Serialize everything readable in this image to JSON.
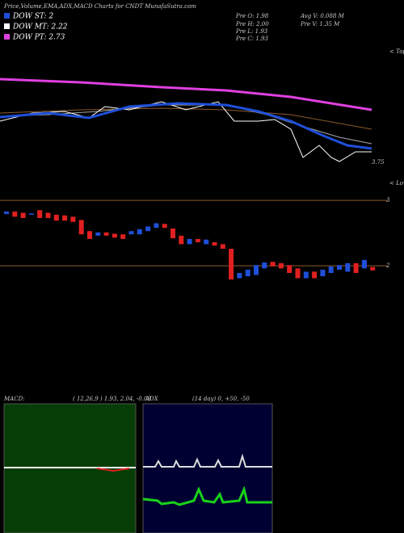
{
  "header": {
    "title": "Price,Volume,EMA,ADX,MACD Charts for CNDT MunafaSutra.com"
  },
  "legend": [
    "DOW ST: 2",
    "DOW MT: 2.22",
    "DOW PT: 2.73"
  ],
  "info": [
    "Pre  O: 1.98",
    "Pre  H: 2.00",
    "Pre  L: 1.93",
    "Pre  C: 1.93",
    "Avg V: 0.088  M",
    "Pre  V: 1.35 M"
  ],
  "labels": {
    "tops": "< Tops",
    "lows": "< Lows",
    "last": "3.75"
  },
  "chart_data": {
    "type": "candlestick",
    "open": [
      2.79,
      2.83,
      2.81,
      2.78,
      2.85,
      2.81,
      2.78,
      2.77,
      2.75,
      2.7,
      2.53,
      2.46,
      2.51,
      2.49,
      2.48,
      2.48,
      2.48,
      2.53,
      2.58,
      2.64,
      2.57,
      2.46,
      2.33,
      2.41,
      2.33,
      2.36,
      2.33,
      2.26,
      1.81,
      1.84,
      1.86,
      1.96,
      2.06,
      2.04,
      2.01,
      1.96,
      1.81,
      1.91,
      1.84,
      1.89,
      1.94,
      1.91,
      2.04,
      1.96,
      1.98
    ],
    "close": [
      2.83,
      2.75,
      2.73,
      2.8,
      2.73,
      2.73,
      2.69,
      2.69,
      2.67,
      2.48,
      2.41,
      2.51,
      2.46,
      2.43,
      2.41,
      2.53,
      2.56,
      2.6,
      2.65,
      2.58,
      2.42,
      2.33,
      2.41,
      2.36,
      2.4,
      2.31,
      2.26,
      1.79,
      1.89,
      1.94,
      2.01,
      2.05,
      1.99,
      1.96,
      1.89,
      1.81,
      1.91,
      1.81,
      1.94,
      1.99,
      2.01,
      2.04,
      1.89,
      2.09,
      1.93
    ],
    "ylim": [
      1.6,
      3.1
    ],
    "yticks": [
      2,
      3
    ],
    "up_color": "#1f4fd8",
    "down_color": "#e02020"
  },
  "macd": {
    "label": "MACD:",
    "params": "( 12,26,9 ) 1.93,  2.04,  -0.09"
  },
  "adx": {
    "label": "ADX",
    "params": "(14  day) 0,  +50,  -50"
  }
}
